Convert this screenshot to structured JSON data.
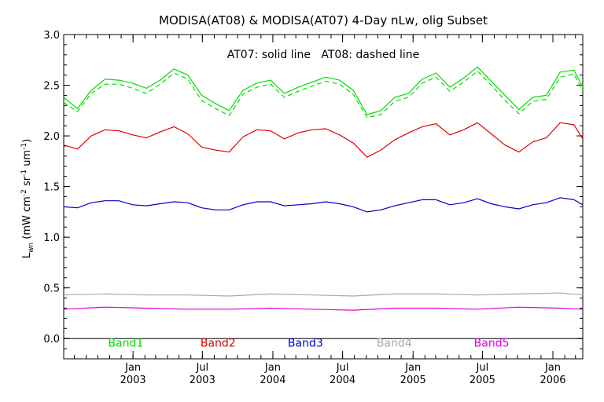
{
  "chart_data": {
    "type": "line",
    "title": "MODISA(AT08) & MODISA(AT07) 4-Day nLw, olig Subset",
    "annotation": "AT07: solid line   AT08: dashed line",
    "ylabel": "L_wn (mW cm^-2 sr^-1 um^-1)",
    "ylabel_main": "L",
    "ylabel_sub": "wn",
    "ylabel_rest": "(mW cm",
    "ylabel_exp1": "-2",
    "ylabel_mid": " sr",
    "ylabel_exp2": "-1",
    "ylabel_mid2": " um",
    "ylabel_exp3": "-1",
    "ylabel_close": ")",
    "xlabel": "",
    "xlim": [
      "2002-07-04",
      "2006-03-20"
    ],
    "ylim": [
      -0.2,
      3.0
    ],
    "yticks": [
      0.0,
      0.5,
      1.0,
      1.5,
      2.0,
      2.5,
      3.0
    ],
    "ytick_labels": [
      "0.0",
      "0.5",
      "1.0",
      "1.5",
      "2.0",
      "2.5",
      "3.0"
    ],
    "xticks": [
      {
        "date": "2003-01-01",
        "month": "Jan",
        "year": "2003"
      },
      {
        "date": "2003-07-01",
        "month": "Jul",
        "year": "2003"
      },
      {
        "date": "2004-01-01",
        "month": "Jan",
        "year": "2004"
      },
      {
        "date": "2004-07-01",
        "month": "Jul",
        "year": "2004"
      },
      {
        "date": "2005-01-01",
        "month": "Jan",
        "year": "2005"
      },
      {
        "date": "2005-07-01",
        "month": "Jul",
        "year": "2005"
      },
      {
        "date": "2006-01-01",
        "month": "Jan",
        "year": "2006"
      }
    ],
    "zero_line": 0.0,
    "grid": false,
    "legend": [
      {
        "label": "Band1",
        "color": "#00dd00",
        "anchor_date": "2002-12-13",
        "y": -0.08
      },
      {
        "label": "Band2",
        "color": "#dd0000",
        "anchor_date": "2003-08-11",
        "y": -0.08
      },
      {
        "label": "Band3",
        "color": "#0000cc",
        "anchor_date": "2004-03-26",
        "y": -0.08
      },
      {
        "label": "Band4",
        "color": "#aaaaaa",
        "anchor_date": "2004-11-13",
        "y": -0.08
      },
      {
        "label": "Band5",
        "color": "#dd00dd",
        "anchor_date": "2005-07-25",
        "y": -0.08
      }
    ],
    "series": [
      {
        "name": "Band1",
        "sensor": "AT07",
        "style": "solid",
        "color": "#00dd00",
        "x": [
          "2002-07-04",
          "2002-08-09",
          "2002-09-14",
          "2002-10-20",
          "2002-11-25",
          "2002-12-31",
          "2003-02-05",
          "2003-03-13",
          "2003-04-18",
          "2003-05-24",
          "2003-06-29",
          "2003-08-04",
          "2003-09-09",
          "2003-10-15",
          "2003-11-20",
          "2003-12-26",
          "2004-01-31",
          "2004-03-07",
          "2004-04-12",
          "2004-05-18",
          "2004-06-23",
          "2004-07-29",
          "2004-09-03",
          "2004-10-09",
          "2004-11-14",
          "2004-12-20",
          "2005-01-25",
          "2005-03-02",
          "2005-04-07",
          "2005-05-13",
          "2005-06-18",
          "2005-07-24",
          "2005-08-29",
          "2005-10-04",
          "2005-11-09",
          "2005-12-15",
          "2006-01-20",
          "2006-02-25",
          "2006-03-20"
        ],
        "y": [
          2.38,
          2.27,
          2.45,
          2.56,
          2.55,
          2.52,
          2.47,
          2.55,
          2.66,
          2.6,
          2.4,
          2.32,
          2.25,
          2.45,
          2.52,
          2.55,
          2.42,
          2.48,
          2.53,
          2.58,
          2.55,
          2.45,
          2.21,
          2.25,
          2.38,
          2.42,
          2.56,
          2.62,
          2.48,
          2.57,
          2.68,
          2.54,
          2.4,
          2.26,
          2.38,
          2.4,
          2.63,
          2.65,
          2.48
        ]
      },
      {
        "name": "Band1",
        "sensor": "AT08",
        "style": "dashed",
        "color": "#00dd00",
        "x": [
          "2002-07-04",
          "2002-08-09",
          "2002-09-14",
          "2002-10-20",
          "2002-11-25",
          "2002-12-31",
          "2003-02-05",
          "2003-03-13",
          "2003-04-18",
          "2003-05-24",
          "2003-06-29",
          "2003-08-04",
          "2003-09-09",
          "2003-10-15",
          "2003-11-20",
          "2003-12-26",
          "2004-01-31",
          "2004-03-07",
          "2004-04-12",
          "2004-05-18",
          "2004-06-23",
          "2004-07-29",
          "2004-09-03",
          "2004-10-09",
          "2004-11-14",
          "2004-12-20",
          "2005-01-25",
          "2005-03-02",
          "2005-04-07",
          "2005-05-13",
          "2005-06-18",
          "2005-07-24",
          "2005-08-29",
          "2005-10-04",
          "2005-11-09",
          "2005-12-15",
          "2006-01-20",
          "2006-02-25",
          "2006-03-20"
        ],
        "y": [
          2.33,
          2.24,
          2.42,
          2.51,
          2.51,
          2.47,
          2.42,
          2.51,
          2.62,
          2.56,
          2.35,
          2.27,
          2.2,
          2.41,
          2.48,
          2.51,
          2.38,
          2.44,
          2.49,
          2.54,
          2.51,
          2.41,
          2.18,
          2.21,
          2.34,
          2.38,
          2.52,
          2.58,
          2.44,
          2.53,
          2.64,
          2.5,
          2.35,
          2.22,
          2.34,
          2.36,
          2.58,
          2.61,
          2.44
        ]
      },
      {
        "name": "Band2",
        "sensor": "AT07",
        "style": "solid",
        "color": "#dd0000",
        "x": [
          "2002-07-04",
          "2002-08-09",
          "2002-09-14",
          "2002-10-20",
          "2002-11-25",
          "2002-12-31",
          "2003-02-05",
          "2003-03-13",
          "2003-04-18",
          "2003-05-24",
          "2003-06-29",
          "2003-08-04",
          "2003-09-09",
          "2003-10-15",
          "2003-11-20",
          "2003-12-26",
          "2004-01-31",
          "2004-03-07",
          "2004-04-12",
          "2004-05-18",
          "2004-06-23",
          "2004-07-29",
          "2004-09-03",
          "2004-10-09",
          "2004-11-14",
          "2004-12-20",
          "2005-01-25",
          "2005-03-02",
          "2005-04-07",
          "2005-05-13",
          "2005-06-18",
          "2005-07-24",
          "2005-08-29",
          "2005-10-04",
          "2005-11-09",
          "2005-12-15",
          "2006-01-20",
          "2006-02-25",
          "2006-03-20"
        ],
        "y": [
          1.91,
          1.87,
          2.0,
          2.06,
          2.05,
          2.01,
          1.98,
          2.04,
          2.09,
          2.02,
          1.89,
          1.86,
          1.84,
          1.99,
          2.06,
          2.05,
          1.97,
          2.03,
          2.06,
          2.07,
          2.01,
          1.93,
          1.79,
          1.86,
          1.96,
          2.03,
          2.09,
          2.12,
          2.01,
          2.06,
          2.13,
          2.02,
          1.91,
          1.84,
          1.94,
          1.98,
          2.13,
          2.11,
          1.97
        ]
      },
      {
        "name": "Band3",
        "sensor": "AT07",
        "style": "solid",
        "color": "#0000cc",
        "x": [
          "2002-07-04",
          "2002-08-09",
          "2002-09-14",
          "2002-10-20",
          "2002-11-25",
          "2002-12-31",
          "2003-02-05",
          "2003-03-13",
          "2003-04-18",
          "2003-05-24",
          "2003-06-29",
          "2003-08-04",
          "2003-09-09",
          "2003-10-15",
          "2003-11-20",
          "2003-12-26",
          "2004-01-31",
          "2004-03-07",
          "2004-04-12",
          "2004-05-18",
          "2004-06-23",
          "2004-07-29",
          "2004-09-03",
          "2004-10-09",
          "2004-11-14",
          "2004-12-20",
          "2005-01-25",
          "2005-03-02",
          "2005-04-07",
          "2005-05-13",
          "2005-06-18",
          "2005-07-24",
          "2005-08-29",
          "2005-10-04",
          "2005-11-09",
          "2005-12-15",
          "2006-01-20",
          "2006-02-25",
          "2006-03-20"
        ],
        "y": [
          1.3,
          1.29,
          1.34,
          1.36,
          1.36,
          1.32,
          1.31,
          1.33,
          1.35,
          1.34,
          1.29,
          1.27,
          1.27,
          1.32,
          1.35,
          1.35,
          1.31,
          1.32,
          1.33,
          1.35,
          1.33,
          1.3,
          1.25,
          1.27,
          1.31,
          1.34,
          1.37,
          1.37,
          1.32,
          1.34,
          1.38,
          1.33,
          1.3,
          1.28,
          1.32,
          1.34,
          1.39,
          1.37,
          1.32
        ]
      },
      {
        "name": "Band4",
        "sensor": "AT07",
        "style": "solid",
        "color": "#aaaaaa",
        "x": [
          "2002-07-04",
          "2002-10-20",
          "2003-02-05",
          "2003-05-24",
          "2003-09-09",
          "2003-12-26",
          "2004-04-12",
          "2004-07-29",
          "2004-11-14",
          "2005-03-02",
          "2005-06-18",
          "2005-10-04",
          "2006-01-20",
          "2006-03-20"
        ],
        "y": [
          0.43,
          0.44,
          0.43,
          0.43,
          0.42,
          0.44,
          0.43,
          0.42,
          0.44,
          0.44,
          0.43,
          0.44,
          0.45,
          0.43
        ]
      },
      {
        "name": "Band5",
        "sensor": "AT07",
        "style": "solid",
        "color": "#dd00dd",
        "x": [
          "2002-07-04",
          "2002-10-20",
          "2003-02-05",
          "2003-05-24",
          "2003-09-09",
          "2003-12-26",
          "2004-04-12",
          "2004-07-29",
          "2004-11-14",
          "2005-03-02",
          "2005-06-18",
          "2005-10-04",
          "2006-01-20",
          "2006-03-20"
        ],
        "y": [
          0.29,
          0.31,
          0.3,
          0.29,
          0.29,
          0.3,
          0.29,
          0.28,
          0.3,
          0.3,
          0.29,
          0.31,
          0.3,
          0.29
        ]
      }
    ]
  }
}
